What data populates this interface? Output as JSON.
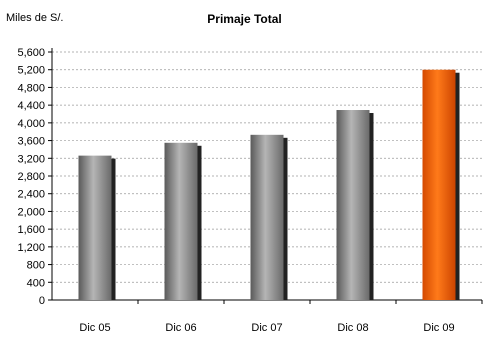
{
  "chart_data": {
    "type": "bar",
    "title": "Primaje Total",
    "ylabel": "Miles de S/.",
    "xlabel": "",
    "categories": [
      "Dic 05",
      "Dic 06",
      "Dic 07",
      "Dic 08",
      "Dic 09"
    ],
    "series": [
      {
        "values": [
          3260,
          3550,
          3730,
          4290,
          5200
        ]
      }
    ],
    "ylim": [
      0,
      5600
    ],
    "yticks": [
      0,
      400,
      800,
      1200,
      1600,
      2000,
      2400,
      2800,
      3200,
      3600,
      4000,
      4400,
      4800,
      5200,
      5600
    ],
    "ytick_labels": [
      "0",
      "400",
      "800",
      "1,200",
      "1,600",
      "2,000",
      "2,400",
      "2,800",
      "3,200",
      "3,600",
      "4,000",
      "4,400",
      "4,800",
      "5,200",
      "5,600"
    ],
    "grid": true,
    "colors": {
      "default_bar": "#8a8a8a",
      "highlight_bar": "#ff6600",
      "gridline": "#9a9a9a"
    },
    "highlight_index": 4
  }
}
